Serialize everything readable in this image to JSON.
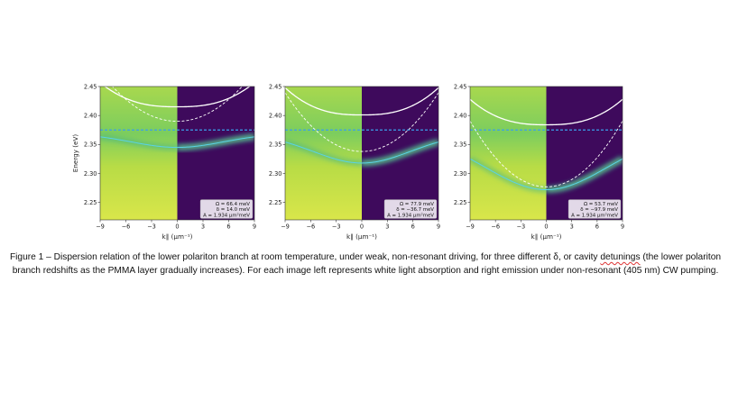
{
  "chart_data": [
    {
      "type": "heatmap",
      "xlabel": "k∥ (μm⁻¹)",
      "ylabel": "Energy (eV)",
      "xlim": [
        -9,
        9
      ],
      "ylim": [
        2.22,
        2.45
      ],
      "xticks": [
        -9,
        -6,
        -3,
        0,
        3,
        6,
        9
      ],
      "yticks": [
        2.25,
        2.3,
        2.35,
        2.4,
        2.45
      ],
      "left_half": "white light absorption",
      "right_half": "emission under non-resonant pumping",
      "exciton_level_eV": 2.375,
      "lower_polariton_min_eV": 2.345,
      "upper_polariton_min_eV": 2.415,
      "cavity_min_eV": 2.39,
      "params": [
        "Ω = 66.4 meV",
        "δ = 14.0 meV",
        "A = 1.934 μm²meV"
      ]
    },
    {
      "type": "heatmap",
      "xlabel": "k∥ (μm⁻¹)",
      "ylabel": "",
      "xlim": [
        -9,
        9
      ],
      "ylim": [
        2.22,
        2.45
      ],
      "xticks": [
        -9,
        -6,
        -3,
        0,
        3,
        6,
        9
      ],
      "yticks": [
        2.25,
        2.3,
        2.35,
        2.4,
        2.45
      ],
      "left_half": "white light absorption",
      "right_half": "emission under non-resonant pumping",
      "exciton_level_eV": 2.375,
      "lower_polariton_min_eV": 2.318,
      "upper_polariton_min_eV": 2.401,
      "cavity_min_eV": 2.338,
      "params": [
        "Ω = 77.9 meV",
        "δ = −36.7 meV",
        "A = 1.934 μm²meV"
      ]
    },
    {
      "type": "heatmap",
      "xlabel": "k∥ (μm⁻¹)",
      "ylabel": "",
      "xlim": [
        -9,
        9
      ],
      "ylim": [
        2.22,
        2.45
      ],
      "xticks": [
        -9,
        -6,
        -3,
        0,
        3,
        6,
        9
      ],
      "yticks": [
        2.25,
        2.3,
        2.35,
        2.4,
        2.45
      ],
      "left_half": "white light absorption",
      "right_half": "emission under non-resonant pumping",
      "exciton_level_eV": 2.375,
      "lower_polariton_min_eV": 2.272,
      "upper_polariton_min_eV": 2.384,
      "cavity_min_eV": 2.277,
      "params": [
        "Ω = 53.7 meV",
        "δ = −97.9 meV",
        "A = 1.934 μm²meV"
      ]
    }
  ],
  "caption": {
    "before": "Figure 1 – Dispersion relation of the lower polariton branch at room temperature, under weak, non-resonant driving, for three different δ, or cavity ",
    "underlined": "detunings",
    "after": " (the lower polariton branch redshifts as the PMMA layer gradually increases). For each image left represents white light absorption and right emission under non-resonant (405 nm) CW pumping."
  },
  "colors": {
    "absorption_low": "#d9e64a",
    "absorption_mid": "#7ccd5e",
    "emission_bg": "#3e0a5c",
    "emission_peak": "#40d0a0",
    "lower_branch_fit": "#5ad2e6",
    "exciton_line": "#3a9fea",
    "upper_branches": "#ffffff"
  }
}
